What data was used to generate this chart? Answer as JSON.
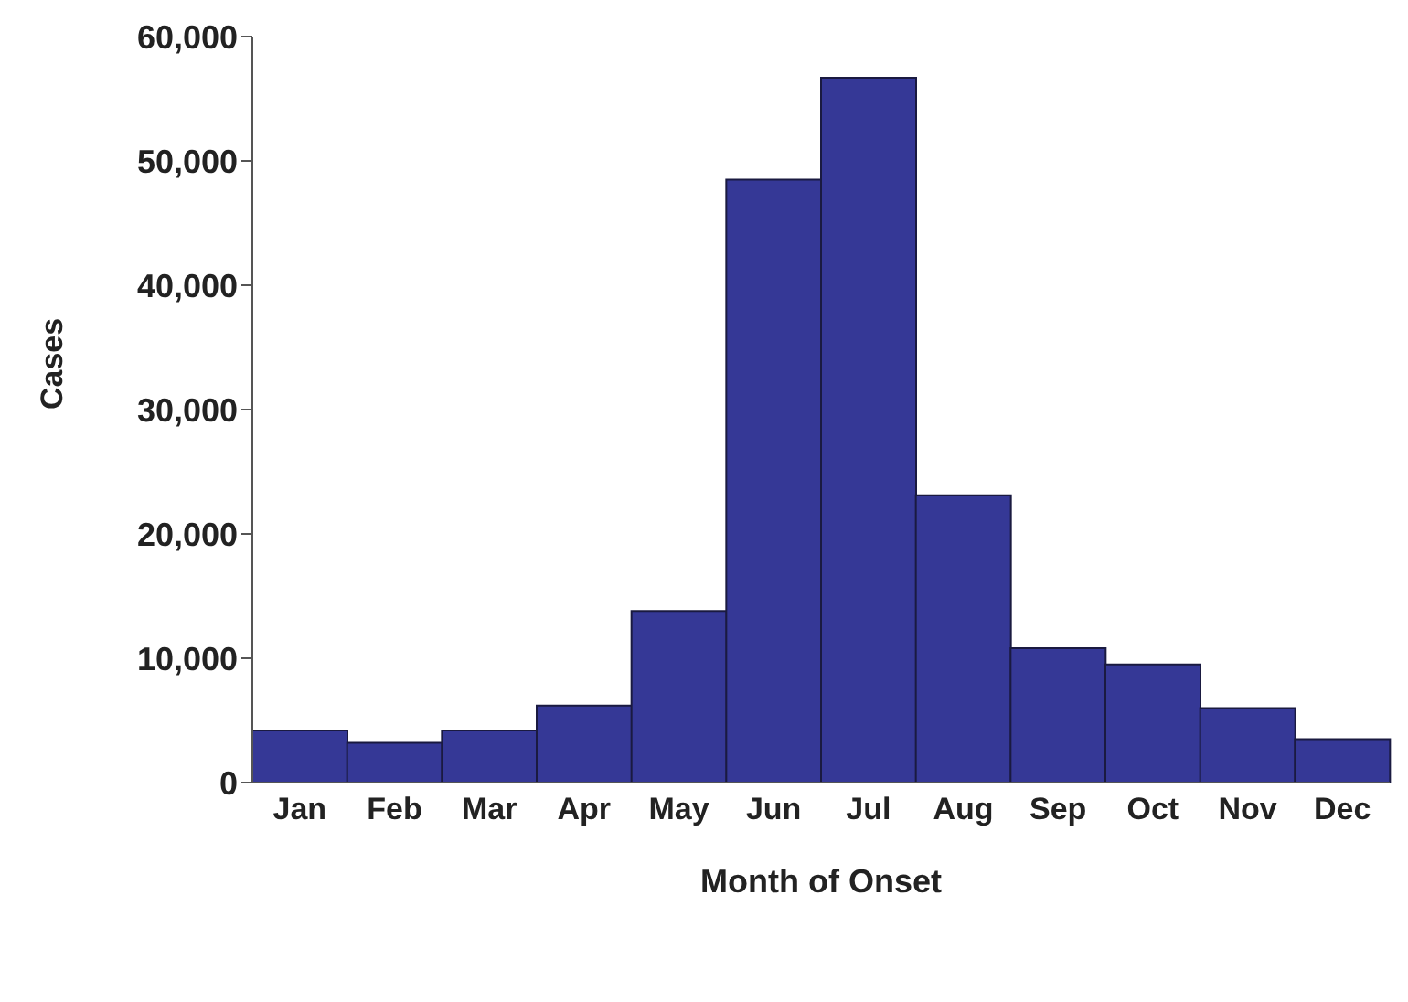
{
  "chart_data": {
    "type": "bar",
    "xlabel": "Month of Onset",
    "ylabel": "Cases",
    "categories": [
      "Jan",
      "Feb",
      "Mar",
      "Apr",
      "May",
      "Jun",
      "Jul",
      "Aug",
      "Sep",
      "Oct",
      "Nov",
      "Dec"
    ],
    "values": [
      4200,
      3200,
      4200,
      6200,
      13800,
      48500,
      56700,
      23100,
      10800,
      9500,
      6000,
      3500
    ],
    "color": "#353896",
    "ylim": [
      0,
      60000
    ],
    "yticks": [
      {
        "value": 0,
        "label": "0"
      },
      {
        "value": 10000,
        "label": "10,000"
      },
      {
        "value": 20000,
        "label": "20,000"
      },
      {
        "value": 30000,
        "label": "30,000"
      },
      {
        "value": 40000,
        "label": "40,000"
      },
      {
        "value": 50000,
        "label": "50,000"
      },
      {
        "value": 60000,
        "label": "60,000"
      }
    ],
    "grid": false,
    "legend": false
  }
}
